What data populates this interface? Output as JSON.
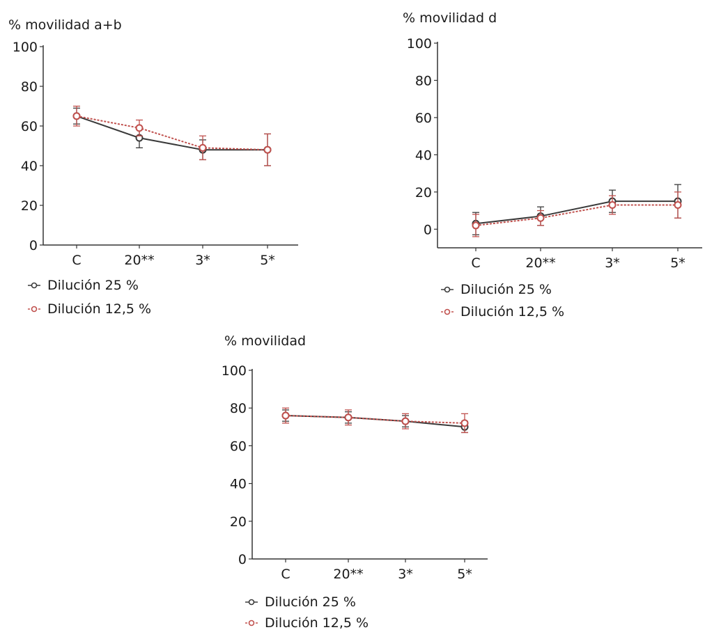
{
  "chart_data": [
    {
      "type": "line",
      "title": "",
      "xlabel": "",
      "ylabel": "% movilidad a+b",
      "ylim": [
        0,
        100
      ],
      "yticks": [
        0,
        20,
        40,
        60,
        80,
        100
      ],
      "categories": [
        "C",
        "20**",
        "3*",
        "5*"
      ],
      "legend_position": "bottom-left",
      "grid": false,
      "series": [
        {
          "name": "Dilución 25 %",
          "color": "#3a3a3a",
          "values": [
            65,
            54,
            48,
            48
          ],
          "error": [
            4,
            5,
            5,
            8
          ]
        },
        {
          "name": "Dilución 12,5 %",
          "color": "#c0504d",
          "values": [
            65,
            59,
            49,
            48
          ],
          "error": [
            5,
            4,
            6,
            8
          ]
        }
      ]
    },
    {
      "type": "line",
      "title": "",
      "xlabel": "",
      "ylabel": "% movilidad d",
      "ylim": [
        -10,
        100
      ],
      "yticks": [
        0,
        20,
        40,
        60,
        80,
        100
      ],
      "categories": [
        "C",
        "20**",
        "3*",
        "5*"
      ],
      "legend_position": "bottom-left",
      "grid": false,
      "series": [
        {
          "name": "Dilución 25 %",
          "color": "#3a3a3a",
          "values": [
            3,
            7,
            15,
            15
          ],
          "error": [
            6,
            5,
            6,
            9
          ]
        },
        {
          "name": "Dilución 12,5 %",
          "color": "#c0504d",
          "values": [
            2,
            6,
            13,
            13
          ],
          "error": [
            6,
            4,
            5,
            7
          ]
        }
      ]
    },
    {
      "type": "line",
      "title": "",
      "xlabel": "",
      "ylabel": "% movilidad",
      "ylim": [
        0,
        100
      ],
      "yticks": [
        0,
        20,
        40,
        60,
        80,
        100
      ],
      "categories": [
        "C",
        "20**",
        "3*",
        "5*"
      ],
      "legend_position": "bottom",
      "grid": false,
      "series": [
        {
          "name": "Dilución 25 %",
          "color": "#3a3a3a",
          "values": [
            76,
            75,
            73,
            70
          ],
          "error": [
            3,
            3,
            3,
            3
          ]
        },
        {
          "name": "Dilución 12,5 %",
          "color": "#c0504d",
          "values": [
            76,
            75,
            73,
            72
          ],
          "error": [
            4,
            4,
            4,
            5
          ]
        }
      ]
    }
  ]
}
